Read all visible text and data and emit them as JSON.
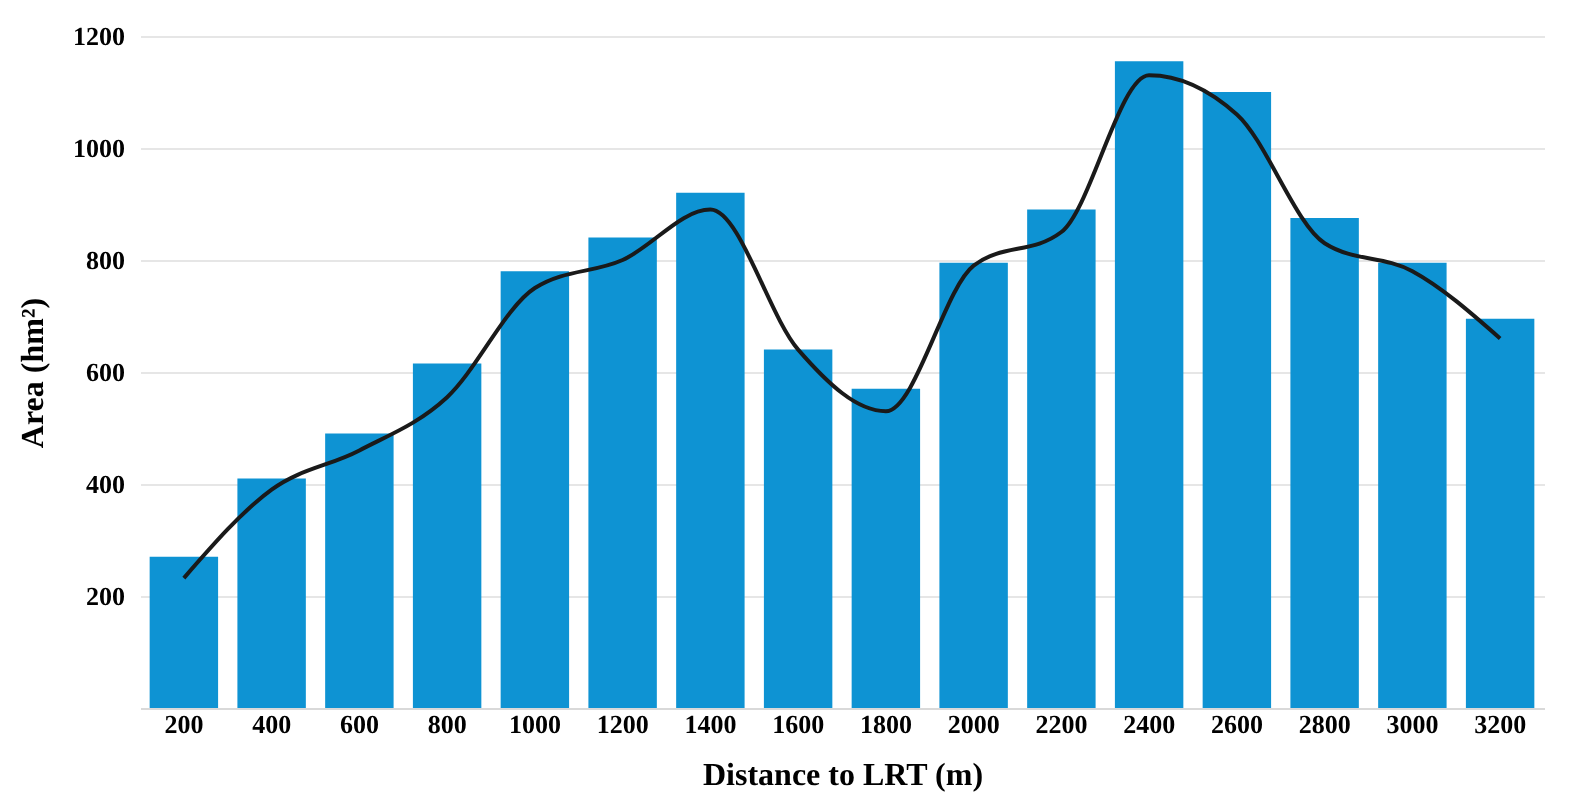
{
  "chart_data": {
    "type": "bar",
    "xlabel": "Distance to LRT (m)",
    "ylabel": "Area (hm²)",
    "categories": [
      "200",
      "400",
      "600",
      "800",
      "1000",
      "1200",
      "1400",
      "1600",
      "1800",
      "2000",
      "2200",
      "2400",
      "2600",
      "2800",
      "3000",
      "3200"
    ],
    "series": [
      {
        "color": "#0e93d3",
        "values": [
          270,
          410,
          490,
          615,
          780,
          840,
          920,
          640,
          570,
          795,
          890,
          1155,
          1100,
          875,
          795,
          695
        ]
      },
      {
        "type": "line",
        "color": "#1a1a1a",
        "line_style": "solid",
        "values": [
          232,
          390,
          460,
          555,
          750,
          800,
          890,
          640,
          530,
          790,
          850,
          1130,
          1060,
          830,
          780,
          660
        ]
      }
    ],
    "ylim": [
      0,
      1200
    ],
    "yticks": [
      200,
      400,
      600,
      800,
      1000,
      1200
    ],
    "grid": "y"
  }
}
